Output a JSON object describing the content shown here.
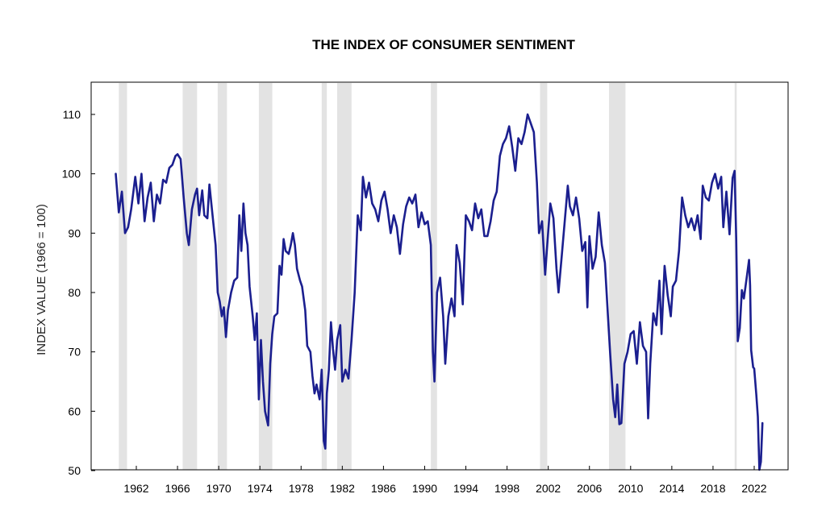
{
  "chart_data": {
    "type": "line",
    "title": "THE INDEX OF CONSUMER SENTIMENT",
    "xlabel": "",
    "ylabel": "INDEX VALUE (1966 = 100)",
    "xlim": [
      1959.7,
      2023.9
    ],
    "ylim": [
      50,
      115
    ],
    "yticks": [
      50,
      60,
      70,
      80,
      90,
      100,
      110
    ],
    "xticks": [
      1962,
      1966,
      1970,
      1974,
      1978,
      1982,
      1986,
      1990,
      1994,
      1998,
      2002,
      2006,
      2010,
      2014,
      2018,
      2022
    ],
    "grid": false,
    "legend": "none",
    "colors": {
      "line": "#1b1f8f",
      "recession": "#e3e3e3",
      "frame": "#000000"
    },
    "recessions": [
      [
        1960.3,
        1961.1
      ],
      [
        1966.5,
        1967.9
      ],
      [
        1969.9,
        1970.8
      ],
      [
        1973.9,
        1975.2
      ],
      [
        1980.0,
        1980.5
      ],
      [
        1981.5,
        1982.9
      ],
      [
        1990.6,
        1991.2
      ],
      [
        2001.2,
        2001.9
      ],
      [
        2007.9,
        2009.5
      ],
      [
        2020.1,
        2020.3
      ]
    ],
    "series": [
      {
        "values": [
          [
            1960.0,
            100.0
          ],
          [
            1960.3,
            93.5
          ],
          [
            1960.6,
            97.0
          ],
          [
            1960.9,
            90.0
          ],
          [
            1961.2,
            91.0
          ],
          [
            1961.5,
            94.0
          ],
          [
            1961.9,
            99.5
          ],
          [
            1962.2,
            95.0
          ],
          [
            1962.5,
            100.0
          ],
          [
            1962.8,
            92.0
          ],
          [
            1963.1,
            96.0
          ],
          [
            1963.4,
            98.5
          ],
          [
            1963.7,
            92.0
          ],
          [
            1964.0,
            96.5
          ],
          [
            1964.3,
            95.0
          ],
          [
            1964.6,
            99.0
          ],
          [
            1964.9,
            98.5
          ],
          [
            1965.2,
            101.0
          ],
          [
            1965.5,
            101.5
          ],
          [
            1965.8,
            103.0
          ],
          [
            1966.0,
            103.3
          ],
          [
            1966.3,
            102.5
          ],
          [
            1966.6,
            96.0
          ],
          [
            1966.9,
            90.0
          ],
          [
            1967.1,
            88.0
          ],
          [
            1967.4,
            94.0
          ],
          [
            1967.7,
            96.5
          ],
          [
            1967.9,
            97.5
          ],
          [
            1968.1,
            93.0
          ],
          [
            1968.4,
            97.2
          ],
          [
            1968.6,
            93.0
          ],
          [
            1968.9,
            92.5
          ],
          [
            1969.1,
            98.2
          ],
          [
            1969.4,
            93.0
          ],
          [
            1969.7,
            88.0
          ],
          [
            1969.9,
            80.0
          ],
          [
            1970.1,
            78.5
          ],
          [
            1970.3,
            76.0
          ],
          [
            1970.5,
            77.5
          ],
          [
            1970.7,
            72.5
          ],
          [
            1970.9,
            77.0
          ],
          [
            1971.2,
            80.0
          ],
          [
            1971.5,
            82.0
          ],
          [
            1971.8,
            82.5
          ],
          [
            1972.0,
            93.0
          ],
          [
            1972.2,
            87.0
          ],
          [
            1972.4,
            95.0
          ],
          [
            1972.6,
            90.0
          ],
          [
            1972.8,
            88.0
          ],
          [
            1973.0,
            81.0
          ],
          [
            1973.3,
            76.0
          ],
          [
            1973.5,
            72.0
          ],
          [
            1973.7,
            76.5
          ],
          [
            1973.9,
            62.0
          ],
          [
            1974.1,
            72.0
          ],
          [
            1974.3,
            65.0
          ],
          [
            1974.5,
            60.0
          ],
          [
            1974.8,
            57.6
          ],
          [
            1975.0,
            68.0
          ],
          [
            1975.2,
            73.0
          ],
          [
            1975.4,
            76.0
          ],
          [
            1975.7,
            76.5
          ],
          [
            1975.9,
            84.5
          ],
          [
            1976.1,
            83.0
          ],
          [
            1976.3,
            89.0
          ],
          [
            1976.5,
            87.0
          ],
          [
            1976.8,
            86.5
          ],
          [
            1977.0,
            88.0
          ],
          [
            1977.2,
            90.0
          ],
          [
            1977.4,
            88.0
          ],
          [
            1977.6,
            84.0
          ],
          [
            1977.9,
            82.0
          ],
          [
            1978.1,
            81.0
          ],
          [
            1978.4,
            77.0
          ],
          [
            1978.6,
            71.0
          ],
          [
            1978.9,
            70.0
          ],
          [
            1979.1,
            66.0
          ],
          [
            1979.3,
            63.0
          ],
          [
            1979.5,
            64.5
          ],
          [
            1979.8,
            62.0
          ],
          [
            1980.0,
            67.0
          ],
          [
            1980.2,
            55.0
          ],
          [
            1980.35,
            53.7
          ],
          [
            1980.5,
            63.0
          ],
          [
            1980.7,
            67.0
          ],
          [
            1980.9,
            75.0
          ],
          [
            1981.1,
            70.5
          ],
          [
            1981.3,
            67.0
          ],
          [
            1981.5,
            72.0
          ],
          [
            1981.8,
            74.5
          ],
          [
            1982.0,
            65.0
          ],
          [
            1982.3,
            67.0
          ],
          [
            1982.6,
            65.5
          ],
          [
            1982.9,
            72.0
          ],
          [
            1983.2,
            80.0
          ],
          [
            1983.5,
            93.0
          ],
          [
            1983.8,
            90.5
          ],
          [
            1984.0,
            99.5
          ],
          [
            1984.3,
            96.0
          ],
          [
            1984.6,
            98.5
          ],
          [
            1984.9,
            95.0
          ],
          [
            1985.2,
            94.0
          ],
          [
            1985.5,
            92.0
          ],
          [
            1985.8,
            95.5
          ],
          [
            1986.1,
            97.0
          ],
          [
            1986.4,
            94.0
          ],
          [
            1986.7,
            90.0
          ],
          [
            1987.0,
            93.0
          ],
          [
            1987.3,
            91.0
          ],
          [
            1987.6,
            86.5
          ],
          [
            1987.9,
            91.5
          ],
          [
            1988.2,
            94.5
          ],
          [
            1988.5,
            96.0
          ],
          [
            1988.8,
            95.0
          ],
          [
            1989.1,
            96.5
          ],
          [
            1989.4,
            91.0
          ],
          [
            1989.7,
            93.5
          ],
          [
            1990.0,
            91.5
          ],
          [
            1990.3,
            92.0
          ],
          [
            1990.6,
            88.0
          ],
          [
            1990.8,
            70.0
          ],
          [
            1990.95,
            65.0
          ],
          [
            1991.2,
            80.0
          ],
          [
            1991.5,
            82.5
          ],
          [
            1991.8,
            76.0
          ],
          [
            1992.0,
            68.0
          ],
          [
            1992.3,
            76.0
          ],
          [
            1992.6,
            79.0
          ],
          [
            1992.9,
            76.0
          ],
          [
            1993.1,
            88.0
          ],
          [
            1993.4,
            85.0
          ],
          [
            1993.7,
            78.0
          ],
          [
            1994.0,
            93.0
          ],
          [
            1994.3,
            92.0
          ],
          [
            1994.6,
            90.5
          ],
          [
            1994.9,
            95.0
          ],
          [
            1995.2,
            92.5
          ],
          [
            1995.5,
            94.0
          ],
          [
            1995.8,
            89.5
          ],
          [
            1996.1,
            89.5
          ],
          [
            1996.4,
            92.0
          ],
          [
            1996.7,
            95.5
          ],
          [
            1997.0,
            97.0
          ],
          [
            1997.3,
            103.0
          ],
          [
            1997.6,
            105.0
          ],
          [
            1997.9,
            106.0
          ],
          [
            1998.2,
            108.0
          ],
          [
            1998.5,
            104.5
          ],
          [
            1998.8,
            100.5
          ],
          [
            1999.1,
            106.0
          ],
          [
            1999.4,
            105.0
          ],
          [
            1999.7,
            107.0
          ],
          [
            2000.0,
            110.0
          ],
          [
            2000.3,
            108.5
          ],
          [
            2000.6,
            107.0
          ],
          [
            2000.9,
            98.5
          ],
          [
            2001.1,
            90.0
          ],
          [
            2001.4,
            92.0
          ],
          [
            2001.7,
            83.0
          ],
          [
            2001.9,
            88.0
          ],
          [
            2002.2,
            95.0
          ],
          [
            2002.5,
            92.5
          ],
          [
            2002.8,
            84.0
          ],
          [
            2003.0,
            80.0
          ],
          [
            2003.3,
            86.0
          ],
          [
            2003.6,
            92.0
          ],
          [
            2003.9,
            98.0
          ],
          [
            2004.1,
            94.5
          ],
          [
            2004.4,
            93.0
          ],
          [
            2004.7,
            96.0
          ],
          [
            2005.0,
            92.5
          ],
          [
            2005.3,
            87.0
          ],
          [
            2005.6,
            88.5
          ],
          [
            2005.8,
            77.5
          ],
          [
            2006.0,
            89.5
          ],
          [
            2006.3,
            84.0
          ],
          [
            2006.6,
            86.0
          ],
          [
            2006.9,
            93.5
          ],
          [
            2007.2,
            88.0
          ],
          [
            2007.5,
            85.0
          ],
          [
            2007.8,
            76.0
          ],
          [
            2008.0,
            70.0
          ],
          [
            2008.3,
            62.0
          ],
          [
            2008.5,
            59.0
          ],
          [
            2008.7,
            64.5
          ],
          [
            2008.9,
            57.8
          ],
          [
            2009.1,
            58.0
          ],
          [
            2009.4,
            68.0
          ],
          [
            2009.7,
            70.0
          ],
          [
            2010.0,
            73.0
          ],
          [
            2010.3,
            73.5
          ],
          [
            2010.6,
            68.0
          ],
          [
            2010.9,
            75.0
          ],
          [
            2011.2,
            71.0
          ],
          [
            2011.5,
            70.0
          ],
          [
            2011.7,
            58.8
          ],
          [
            2011.9,
            68.0
          ],
          [
            2012.2,
            76.5
          ],
          [
            2012.5,
            74.5
          ],
          [
            2012.8,
            82.0
          ],
          [
            2013.0,
            73.0
          ],
          [
            2013.3,
            84.5
          ],
          [
            2013.6,
            79.5
          ],
          [
            2013.9,
            76.0
          ],
          [
            2014.1,
            81.0
          ],
          [
            2014.4,
            82.0
          ],
          [
            2014.7,
            87.0
          ],
          [
            2015.0,
            96.0
          ],
          [
            2015.3,
            93.0
          ],
          [
            2015.6,
            91.0
          ],
          [
            2015.9,
            92.5
          ],
          [
            2016.2,
            90.5
          ],
          [
            2016.5,
            93.0
          ],
          [
            2016.8,
            89.0
          ],
          [
            2017.0,
            98.0
          ],
          [
            2017.3,
            96.0
          ],
          [
            2017.6,
            95.5
          ],
          [
            2017.9,
            98.5
          ],
          [
            2018.2,
            100.0
          ],
          [
            2018.5,
            97.5
          ],
          [
            2018.8,
            99.5
          ],
          [
            2019.0,
            91.0
          ],
          [
            2019.3,
            97.0
          ],
          [
            2019.6,
            89.8
          ],
          [
            2019.9,
            99.3
          ],
          [
            2020.1,
            100.5
          ],
          [
            2020.25,
            89.1
          ],
          [
            2020.4,
            71.8
          ],
          [
            2020.6,
            74.0
          ],
          [
            2020.8,
            80.4
          ],
          [
            2021.0,
            79.0
          ],
          [
            2021.3,
            82.9
          ],
          [
            2021.5,
            85.5
          ],
          [
            2021.6,
            81.2
          ],
          [
            2021.7,
            70.3
          ],
          [
            2021.9,
            67.4
          ],
          [
            2022.0,
            67.2
          ],
          [
            2022.2,
            62.8
          ],
          [
            2022.35,
            59.1
          ],
          [
            2022.5,
            50.0
          ],
          [
            2022.65,
            51.5
          ],
          [
            2022.8,
            58.0
          ]
        ]
      }
    ]
  }
}
